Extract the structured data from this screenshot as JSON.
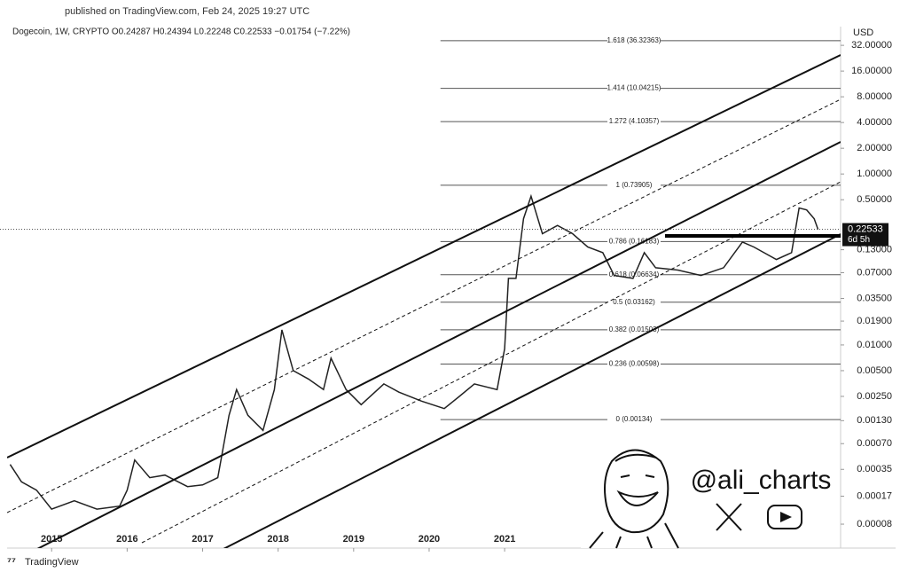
{
  "chart_data": {
    "type": "line",
    "published": "published on TradingView.com, Feb 24, 2025 19:27 UTC",
    "title": "Dogecoin, 1W, CRYPTO  O0.24287  H0.24394  L0.22248  C0.22533  −0.01754 (−7.22%)",
    "currency": "USD",
    "branding": "TradingView",
    "watermark": "@ali_charts",
    "log_scale": true,
    "xlim": [
      2014.41,
      2025.45
    ],
    "xticks": [
      2015,
      2016,
      2017,
      2018,
      2019,
      2020,
      2021
    ],
    "ylim": [
      4.2e-05,
      53
    ],
    "yticks": [
      {
        "value": 32,
        "label": "32.00000"
      },
      {
        "value": 16,
        "label": "16.00000"
      },
      {
        "value": 8,
        "label": "8.00000"
      },
      {
        "value": 4,
        "label": "4.00000"
      },
      {
        "value": 2,
        "label": "2.00000"
      },
      {
        "value": 1,
        "label": "1.00000"
      },
      {
        "value": 0.5,
        "label": "0.50000"
      },
      {
        "value": 0.13,
        "label": "0.13000"
      },
      {
        "value": 0.07,
        "label": "0.07000"
      },
      {
        "value": 0.035,
        "label": "0.03500"
      },
      {
        "value": 0.019,
        "label": "0.01900"
      },
      {
        "value": 0.01,
        "label": "0.01000"
      },
      {
        "value": 0.005,
        "label": "0.00500"
      },
      {
        "value": 0.0025,
        "label": "0.00250"
      },
      {
        "value": 0.0013,
        "label": "0.00130"
      },
      {
        "value": 0.0007,
        "label": "0.00070"
      },
      {
        "value": 0.00035,
        "label": "0.00035"
      },
      {
        "value": 0.00017,
        "label": "0.00017"
      },
      {
        "value": 8e-05,
        "label": "0.00008"
      }
    ],
    "last_price": 0.22533,
    "countdown": "6d 5h",
    "fib_levels": [
      {
        "label": "1.618 (36.32363)",
        "value": 36.32363
      },
      {
        "label": "1.414 (10.04215)",
        "value": 10.04215
      },
      {
        "label": "1.272 (4.10357)",
        "value": 4.10357
      },
      {
        "label": "1 (0.73905)",
        "value": 0.73905
      },
      {
        "label": "0.786 (0.16183)",
        "value": 0.16183
      },
      {
        "label": "0.618 (0.06634)",
        "value": 0.06634
      },
      {
        "label": "0.5 (0.03162)",
        "value": 0.03162
      },
      {
        "label": "0.382 (0.01503)",
        "value": 0.01503
      },
      {
        "label": "0.236 (0.00598)",
        "value": 0.00598
      },
      {
        "label": "0 (0.00134)",
        "value": 0.00134
      }
    ],
    "series": [
      {
        "name": "Dogecoin",
        "color": "#222222",
        "x": [
          2014.45,
          2014.6,
          2014.8,
          2015.0,
          2015.3,
          2015.6,
          2015.9,
          2016.0,
          2016.1,
          2016.3,
          2016.5,
          2016.8,
          2017.0,
          2017.2,
          2017.35,
          2017.45,
          2017.6,
          2017.8,
          2017.95,
          2018.05,
          2018.2,
          2018.4,
          2018.6,
          2018.7,
          2018.9,
          2019.1,
          2019.4,
          2019.6,
          2019.9,
          2020.2,
          2020.4,
          2020.6,
          2020.9,
          2021.0,
          2021.05,
          2021.15,
          2021.25,
          2021.35,
          2021.5,
          2021.7,
          2021.9,
          2022.1,
          2022.3,
          2022.45,
          2022.7,
          2022.85,
          2023.0,
          2023.3,
          2023.6,
          2023.9,
          2024.15,
          2024.3,
          2024.6,
          2024.8,
          2024.9,
          2025.0,
          2025.1,
          2025.15
        ],
        "values": [
          0.0004,
          0.00025,
          0.0002,
          0.00012,
          0.00015,
          0.00012,
          0.00013,
          0.0002,
          0.00045,
          0.00028,
          0.0003,
          0.00022,
          0.00023,
          0.00028,
          0.0015,
          0.003,
          0.0015,
          0.001,
          0.003,
          0.015,
          0.005,
          0.004,
          0.003,
          0.007,
          0.003,
          0.002,
          0.0035,
          0.0028,
          0.0022,
          0.0018,
          0.0025,
          0.0035,
          0.003,
          0.009,
          0.06,
          0.06,
          0.3,
          0.55,
          0.2,
          0.25,
          0.2,
          0.14,
          0.12,
          0.065,
          0.06,
          0.12,
          0.08,
          0.075,
          0.065,
          0.08,
          0.16,
          0.14,
          0.1,
          0.12,
          0.4,
          0.38,
          0.3,
          0.225
        ]
      }
    ]
  }
}
